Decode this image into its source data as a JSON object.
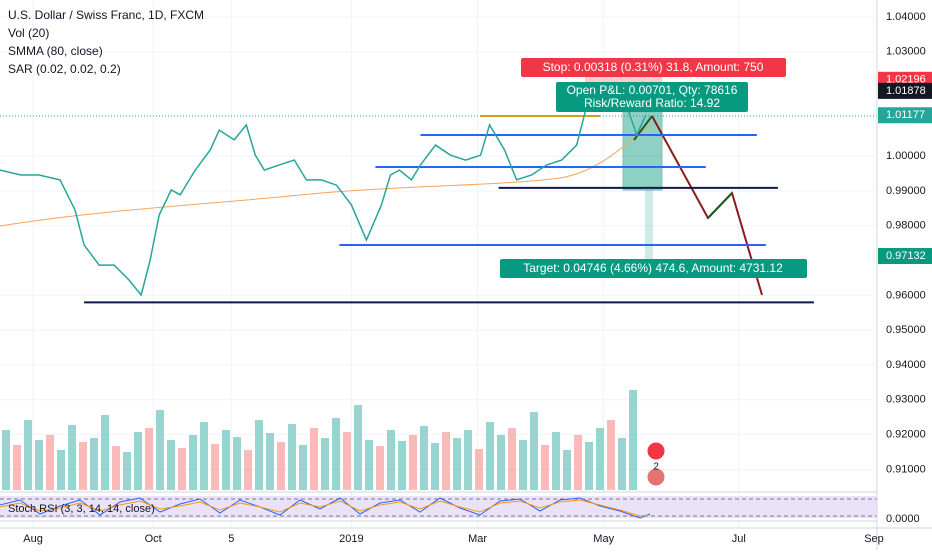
{
  "chart_data": {
    "type": "line",
    "title": "U.S. Dollar / Swiss Franc, 1D, FXCM",
    "indicators": [
      "Vol (20)",
      "SMMA (80, close)",
      "SAR (0.02, 0.02, 0.2)"
    ],
    "series": [
      {
        "name": "Close",
        "color": "#26a69a",
        "x": [
          0,
          7,
          13,
          20,
          25,
          28,
          33,
          38,
          43,
          47,
          50,
          53,
          57,
          60,
          65,
          70,
          73,
          78,
          82,
          85,
          88,
          93,
          98,
          102,
          107,
          112,
          117,
          122,
          127,
          130,
          133,
          137,
          140,
          145,
          150,
          155,
          160,
          163,
          168,
          172,
          177,
          182,
          187,
          192,
          195,
          198,
          203,
          208,
          212,
          215
        ],
        "values": [
          0.996,
          0.9946,
          0.9946,
          0.9932,
          0.9845,
          0.9745,
          0.9687,
          0.9687,
          0.9644,
          0.9601,
          0.9702,
          0.9831,
          0.9903,
          0.9889,
          0.996,
          1.0018,
          1.0075,
          1.0047,
          1.009,
          1.0003,
          0.996,
          0.9975,
          0.9989,
          0.9932,
          0.9932,
          0.9917,
          0.986,
          0.9759,
          0.986,
          0.9946,
          0.996,
          0.9932,
          0.9975,
          1.0032,
          1.0003,
          0.9989,
          1.0003,
          1.009,
          1.0018,
          0.9932,
          0.9946,
          0.9975,
          0.9989,
          1.0032,
          1.0133,
          1.0205,
          1.019,
          1.0161,
          1.0061,
          1.0118
        ]
      }
    ],
    "volume": [
      60,
      45,
      70,
      50,
      55,
      40,
      65,
      48,
      52,
      75,
      44,
      38,
      58,
      62,
      80,
      50,
      42,
      55,
      68,
      46,
      60,
      53,
      40,
      70,
      57,
      48,
      66,
      45,
      62,
      52,
      72,
      58,
      85,
      50,
      44,
      60,
      49,
      55,
      64,
      47,
      58,
      52,
      60,
      41,
      68,
      55,
      62,
      50,
      78,
      45,
      58,
      40,
      55,
      48,
      62,
      70,
      52,
      100
    ],
    "xlim": [
      0,
      292
    ],
    "xticks": [
      {
        "value": 11,
        "label": "Aug"
      },
      {
        "value": 51,
        "label": "Oct"
      },
      {
        "value": 77,
        "label": "5"
      },
      {
        "value": 117,
        "label": "2019"
      },
      {
        "value": 159,
        "label": "Mar"
      },
      {
        "value": 201,
        "label": "May"
      },
      {
        "value": 246,
        "label": "Jul"
      },
      {
        "value": 291,
        "label": "Sep"
      }
    ],
    "ylim": [
      0.89977,
      1.04489
    ],
    "yticks": [
      {
        "value": 1.04,
        "label": "1.04000"
      },
      {
        "value": 1.03,
        "label": "1.03000"
      },
      {
        "value": 1.0,
        "label": "1.00000"
      },
      {
        "value": 0.99,
        "label": "0.99000"
      },
      {
        "value": 0.98,
        "label": "0.98000"
      },
      {
        "value": 0.96,
        "label": "0.96000"
      },
      {
        "value": 0.95,
        "label": "0.95000"
      },
      {
        "value": 0.94,
        "label": "0.94000"
      },
      {
        "value": 0.93,
        "label": "0.93000"
      },
      {
        "value": 0.92,
        "label": "0.92000"
      },
      {
        "value": 0.91,
        "label": "0.91000"
      }
    ],
    "price_labels": [
      {
        "value": 1.02196,
        "label": "1.02196",
        "color": "#f23645"
      },
      {
        "value": 1.01878,
        "label": "1.01878",
        "color": "#131722"
      },
      {
        "value": 1.01177,
        "label": "1.01177",
        "color": "#26a69a"
      },
      {
        "value": 0.97132,
        "label": "0.97132",
        "color": "#089981"
      }
    ],
    "levels": [
      {
        "value": 1.0061,
        "from": 140,
        "to": 252,
        "color": "#2962ff"
      },
      {
        "value": 0.9969,
        "from": 125,
        "to": 235,
        "color": "#2962ff"
      },
      {
        "value": 0.9909,
        "from": 166,
        "to": 259,
        "color": "#0d1b4c"
      },
      {
        "value": 0.9745,
        "from": 113,
        "to": 255,
        "color": "#2962ff"
      },
      {
        "value": 0.958,
        "from": 28,
        "to": 271,
        "color": "#0d1b4c"
      }
    ],
    "stop_label": "Stop: 0.00318 (0.31%) 31.8, Amount: 750",
    "pnl_label": "Open P&L: 0.00701, Qty: 78616",
    "rr_label": "Risk/Reward Ratio: 14.92",
    "target_label": "Target: 0.04746 (4.66%) 474.6, Amount: 4731.12",
    "stoch_label": "Stoch RSI (3, 3, 14, 14, close)",
    "stoch_tick": "0.0000",
    "grid": true
  }
}
